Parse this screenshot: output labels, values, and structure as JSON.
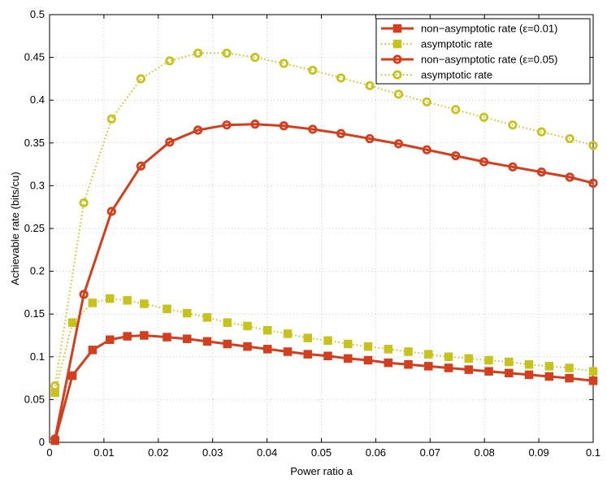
{
  "chart_data": {
    "type": "line",
    "title": "",
    "xlabel": "Power ratio a",
    "ylabel": "Achievable rate (bits/cu)",
    "xlim": [
      0,
      0.1
    ],
    "ylim": [
      0,
      0.5
    ],
    "xticks": [
      "0",
      "0.01",
      "0.02",
      "0.03",
      "0.04",
      "0.05",
      "0.06",
      "0.07",
      "0.08",
      "0.09",
      "0.1"
    ],
    "yticks": [
      "0",
      "0.05",
      "0.1",
      "0.15",
      "0.2",
      "0.25",
      "0.3",
      "0.35",
      "0.4",
      "0.45",
      "0.5"
    ],
    "grid": true,
    "legend_position": "top-right",
    "series": [
      {
        "name": "non−asymptotic rate (ε=0.01)",
        "color": "#d23f1f",
        "line": "solid",
        "marker": "square",
        "x": [
          0.001,
          0.0042,
          0.0079,
          0.0111,
          0.0143,
          0.0174,
          0.0216,
          0.0253,
          0.029,
          0.0327,
          0.0364,
          0.0401,
          0.0438,
          0.0475,
          0.0512,
          0.0549,
          0.0586,
          0.0623,
          0.066,
          0.0697,
          0.0734,
          0.0771,
          0.0808,
          0.0845,
          0.0882,
          0.0919,
          0.0956,
          0.1
        ],
        "y": [
          0.002,
          0.078,
          0.108,
          0.12,
          0.124,
          0.125,
          0.123,
          0.121,
          0.118,
          0.115,
          0.112,
          0.109,
          0.106,
          0.103,
          0.101,
          0.098,
          0.096,
          0.093,
          0.091,
          0.089,
          0.087,
          0.085,
          0.083,
          0.081,
          0.079,
          0.077,
          0.075,
          0.072
        ]
      },
      {
        "name": "asymptotic rate",
        "color": "#c8c21e",
        "line": "dotted",
        "marker": "square",
        "x": [
          0.001,
          0.0042,
          0.0079,
          0.0111,
          0.0143,
          0.0174,
          0.0216,
          0.0253,
          0.029,
          0.0327,
          0.0364,
          0.0401,
          0.0438,
          0.0475,
          0.0512,
          0.0549,
          0.0586,
          0.0623,
          0.066,
          0.0697,
          0.0734,
          0.0771,
          0.0808,
          0.0845,
          0.0882,
          0.0919,
          0.0956,
          0.1
        ],
        "y": [
          0.058,
          0.14,
          0.163,
          0.168,
          0.166,
          0.162,
          0.156,
          0.151,
          0.146,
          0.14,
          0.136,
          0.131,
          0.127,
          0.122,
          0.119,
          0.115,
          0.112,
          0.109,
          0.106,
          0.103,
          0.1,
          0.098,
          0.096,
          0.094,
          0.091,
          0.089,
          0.087,
          0.083
        ]
      },
      {
        "name": "non−asymptotic rate (ε=0.05)",
        "color": "#d23f1f",
        "line": "solid",
        "marker": "circle",
        "x": [
          0.001,
          0.0063,
          0.0114,
          0.0168,
          0.0221,
          0.0273,
          0.0326,
          0.0378,
          0.0431,
          0.0484,
          0.0536,
          0.0589,
          0.0642,
          0.0694,
          0.0747,
          0.0799,
          0.0852,
          0.0905,
          0.0957,
          0.1
        ],
        "y": [
          0.004,
          0.173,
          0.27,
          0.323,
          0.351,
          0.365,
          0.371,
          0.372,
          0.37,
          0.366,
          0.361,
          0.355,
          0.349,
          0.342,
          0.335,
          0.328,
          0.322,
          0.316,
          0.31,
          0.303
        ]
      },
      {
        "name": "asymptotic rate",
        "color": "#c8c21e",
        "line": "dotted",
        "marker": "circle",
        "x": [
          0.001,
          0.0063,
          0.0114,
          0.0168,
          0.0221,
          0.0273,
          0.0326,
          0.0378,
          0.0431,
          0.0484,
          0.0536,
          0.0589,
          0.0642,
          0.0694,
          0.0747,
          0.0799,
          0.0852,
          0.0905,
          0.0957,
          0.1
        ],
        "y": [
          0.066,
          0.28,
          0.378,
          0.425,
          0.446,
          0.455,
          0.455,
          0.45,
          0.443,
          0.435,
          0.426,
          0.417,
          0.407,
          0.398,
          0.389,
          0.38,
          0.371,
          0.363,
          0.355,
          0.347
        ]
      }
    ]
  }
}
